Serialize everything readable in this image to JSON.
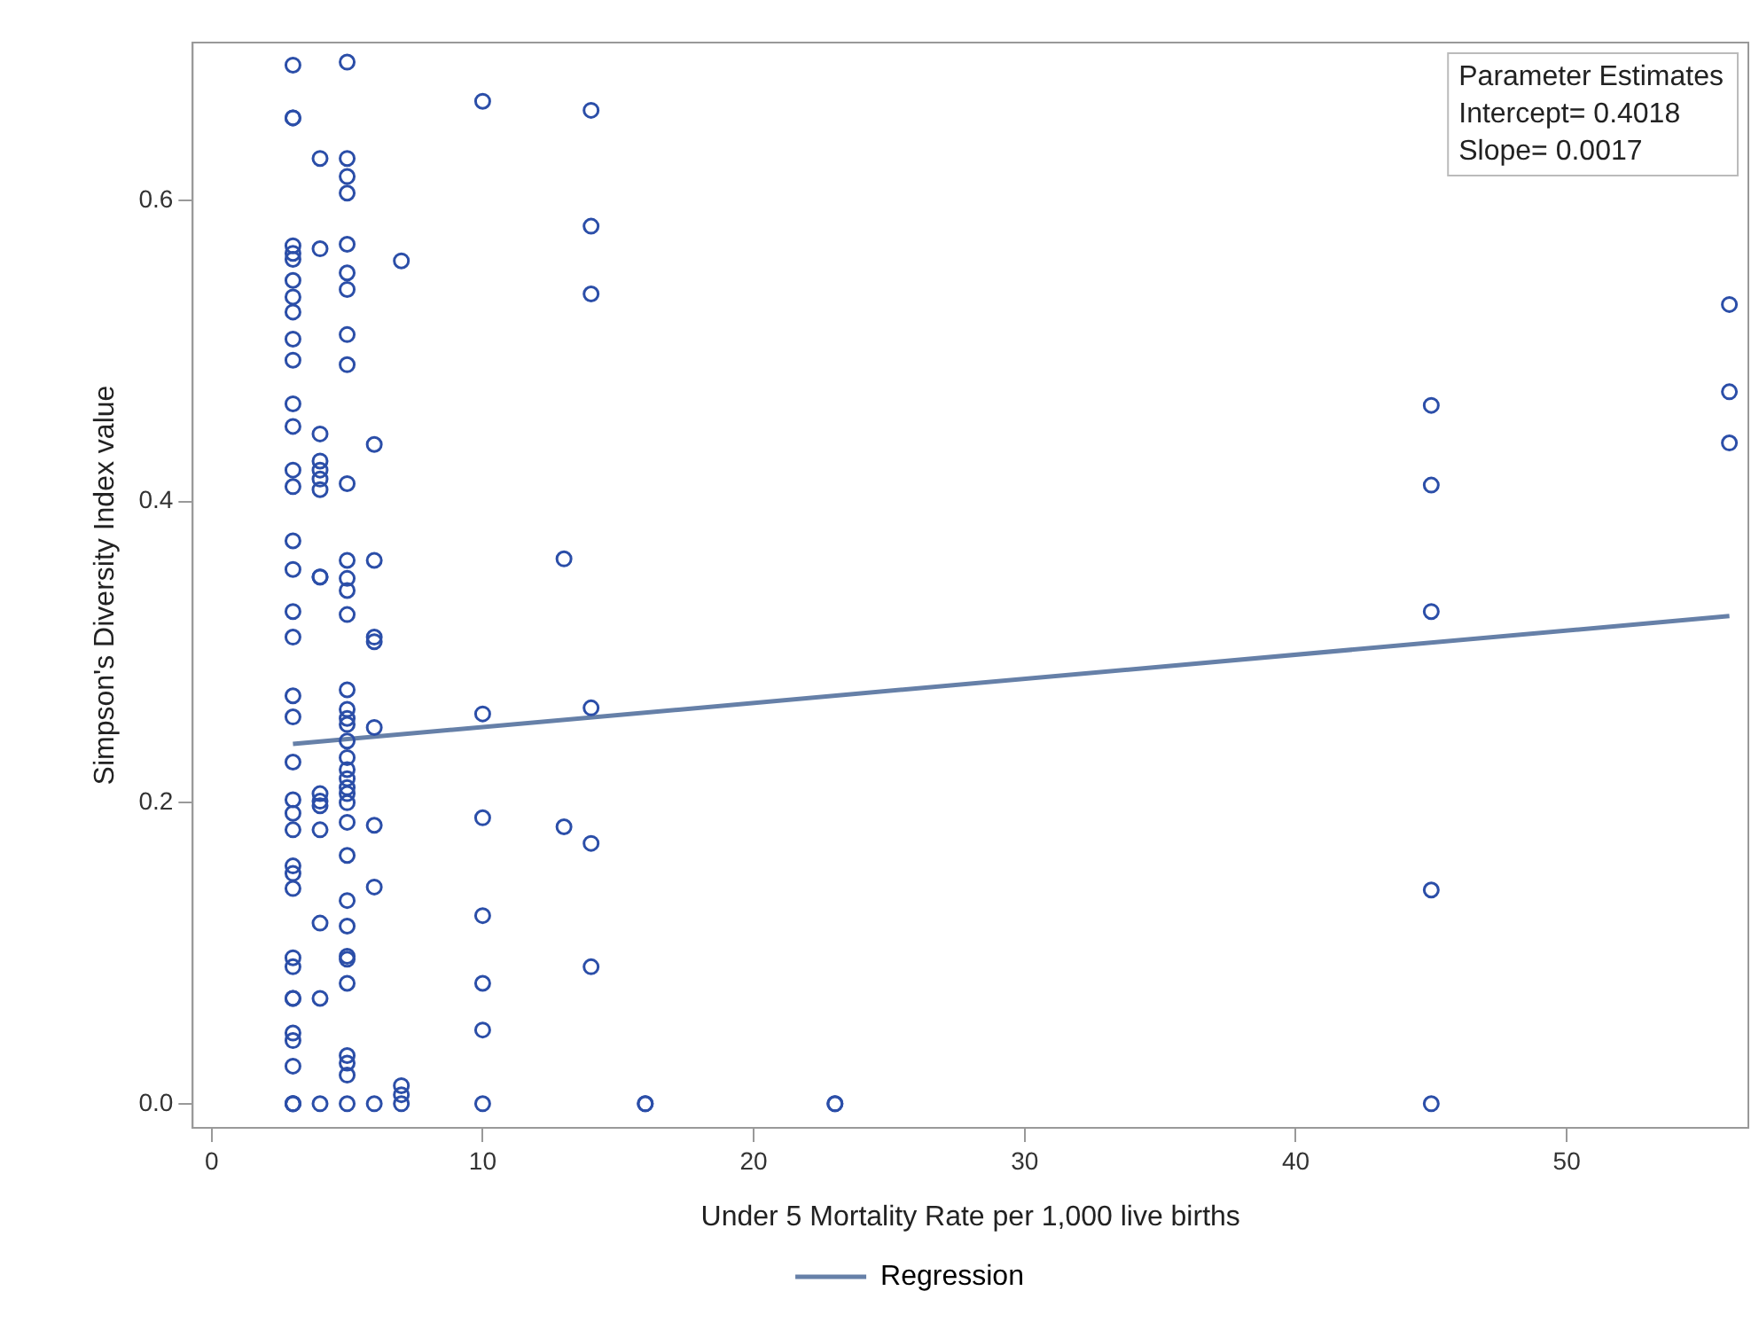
{
  "chart_data": {
    "type": "scatter",
    "xlabel": "Under 5 Mortality Rate per 1,000 live births",
    "ylabel": "Simpson's Diversity Index value",
    "annotations": [
      "Parameter Estimates",
      "Intercept= 0.4018",
      "Slope= 0.0017"
    ],
    "xlim": [
      -0.7,
      56.7
    ],
    "xticks": [
      0,
      10,
      20,
      30,
      40,
      50
    ],
    "ylim": [
      -0.016,
      0.705
    ],
    "yticks": [
      {
        "value": 0,
        "label": "0.0"
      },
      {
        "value": 0.2,
        "label": "0.2"
      },
      {
        "value": 0.4,
        "label": "0.4"
      },
      {
        "value": 0.6,
        "label": "0.6"
      }
    ],
    "grid": false,
    "legend": "bottom",
    "series": [
      {
        "color": "#2b4ea8",
        "marker": "circle",
        "x": [
          3,
          3,
          3,
          3,
          3,
          3,
          3,
          3,
          3,
          3,
          3,
          3,
          3,
          3,
          3,
          3,
          3,
          3,
          3,
          3,
          3,
          3,
          3,
          3,
          3,
          3,
          3,
          3,
          3,
          3,
          3,
          3,
          3,
          3,
          3,
          3,
          3,
          3,
          4,
          4,
          4,
          4,
          4,
          4,
          4,
          4,
          4,
          4,
          4,
          4,
          4,
          4,
          4,
          4,
          5,
          5,
          5,
          5,
          5,
          5,
          5,
          5,
          5,
          5,
          5,
          5,
          5,
          5,
          5,
          5,
          5,
          5,
          5,
          5,
          5,
          5,
          5,
          5,
          5,
          5,
          5,
          5,
          5,
          5,
          5,
          5,
          5,
          5,
          5,
          5,
          6,
          6,
          6,
          6,
          6,
          6,
          6,
          6,
          7,
          7,
          7,
          7,
          10,
          10,
          10,
          10,
          10,
          10,
          10,
          13,
          13,
          14,
          14,
          14,
          14,
          14,
          14,
          16,
          16,
          23,
          23,
          45,
          45,
          45,
          45,
          45,
          56,
          56,
          56
        ],
        "values": [
          0.69,
          0.655,
          0.655,
          0.57,
          0.565,
          0.561,
          0.547,
          0.536,
          0.526,
          0.508,
          0.494,
          0.465,
          0.45,
          0.421,
          0.41,
          0.374,
          0.355,
          0.327,
          0.31,
          0.271,
          0.257,
          0.227,
          0.202,
          0.193,
          0.182,
          0.158,
          0.153,
          0.143,
          0.097,
          0.091,
          0.07,
          0.07,
          0.047,
          0.042,
          0.025,
          0,
          0,
          0,
          0.628,
          0.568,
          0.445,
          0.427,
          0.421,
          0.415,
          0.408,
          0.35,
          0.35,
          0.206,
          0.201,
          0.198,
          0.182,
          0.12,
          0.07,
          0,
          0.692,
          0.628,
          0.616,
          0.605,
          0.571,
          0.552,
          0.541,
          0.511,
          0.491,
          0.412,
          0.361,
          0.349,
          0.341,
          0.325,
          0.275,
          0.262,
          0.256,
          0.252,
          0.241,
          0.23,
          0.222,
          0.216,
          0.21,
          0.206,
          0.2,
          0.187,
          0.165,
          0.135,
          0.118,
          0.098,
          0.096,
          0.08,
          0.032,
          0.027,
          0.019,
          0,
          0.438,
          0.361,
          0.31,
          0.307,
          0.25,
          0.185,
          0.144,
          0,
          0.56,
          0.012,
          0.006,
          0,
          0.666,
          0.259,
          0.19,
          0.125,
          0.08,
          0.049,
          0,
          0.362,
          0.184,
          0.66,
          0.583,
          0.538,
          0.263,
          0.173,
          0.091,
          0,
          0,
          0,
          0,
          0.464,
          0.411,
          0.327,
          0.142,
          0,
          0.531,
          0.473,
          0.439
        ]
      },
      {
        "type": "line",
        "name": "Regression",
        "color": "#6680a8",
        "marker": "none",
        "line_style": "solid",
        "x": [
          3,
          56
        ],
        "values": [
          0.239,
          0.324
        ]
      }
    ]
  }
}
